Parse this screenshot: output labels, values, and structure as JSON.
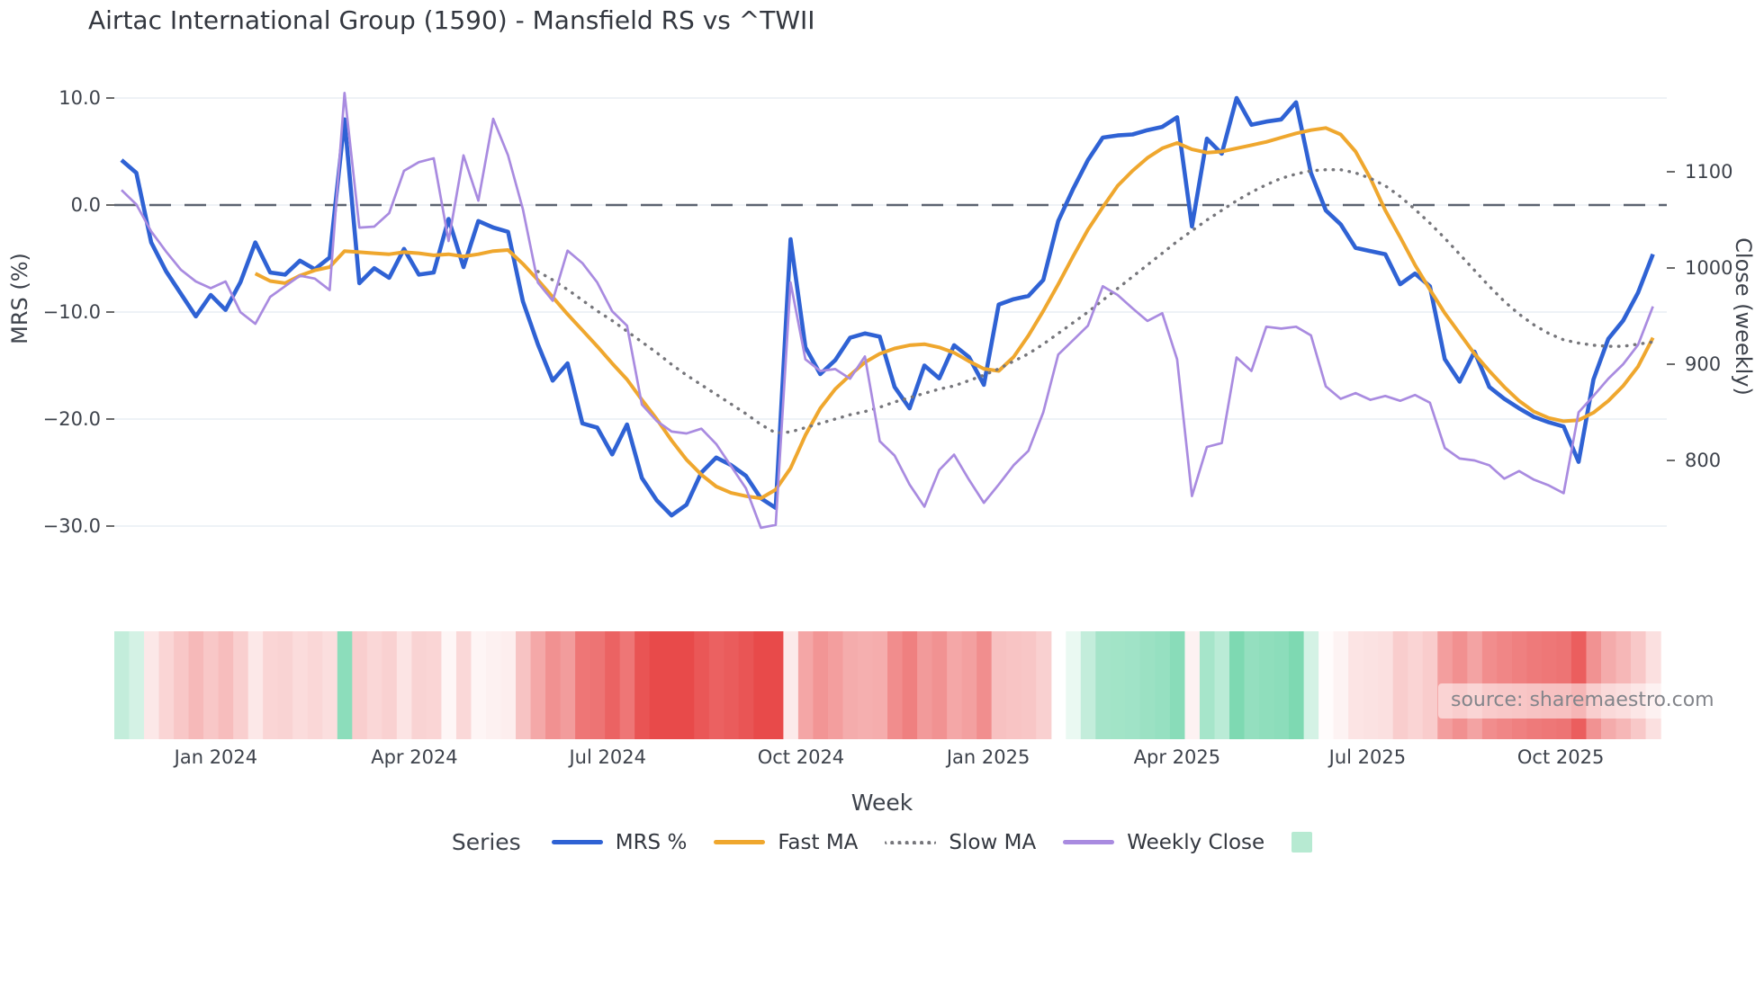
{
  "title": "Airtac International Group (1590) - Mansfield RS vs ^TWII",
  "source": "source: sharemaestro.com",
  "axes": {
    "left": {
      "label": "MRS (%)",
      "tick_labels": [
        "10.0",
        "0.0",
        "−10.0",
        "−20.0",
        "−30.0"
      ],
      "tick_values": [
        10,
        0,
        -10,
        -20,
        -30
      ]
    },
    "right": {
      "label": "Close (weekly)",
      "tick_labels": [
        "1100",
        "1000",
        "900",
        "800"
      ],
      "tick_values": [
        1100,
        1000,
        900,
        800
      ]
    },
    "x": {
      "label": "Week",
      "ticks": [
        {
          "label": "Jan 2024",
          "week": 6.35
        },
        {
          "label": "Apr 2024",
          "week": 19.7
        },
        {
          "label": "Jul 2024",
          "week": 32.7
        },
        {
          "label": "Oct 2024",
          "week": 45.7
        },
        {
          "label": "Jan 2025",
          "week": 58.3
        },
        {
          "label": "Apr 2025",
          "week": 71.0
        },
        {
          "label": "Jul 2025",
          "week": 83.8
        },
        {
          "label": "Oct 2025",
          "week": 96.8
        }
      ]
    }
  },
  "legend": {
    "title": "Series",
    "items": [
      {
        "label": "MRS %",
        "swatch": "line",
        "color_key": "mrs_blue"
      },
      {
        "label": "Fast MA",
        "swatch": "line",
        "color_key": "fast_orange"
      },
      {
        "label": "Slow MA",
        "swatch": "dotted",
        "color_key": "slow_gray"
      },
      {
        "label": "Weekly Close",
        "swatch": "line",
        "color_key": "close_purple"
      },
      {
        "label": "",
        "swatch": "square",
        "color_key": "legend_square"
      }
    ]
  },
  "colors": {
    "mrs_blue": "#2f62d4",
    "fast_orange": "#efa72e",
    "slow_gray": "#76767b",
    "close_purple": "#a98be0",
    "zero_line": "#5c6370",
    "grid": "#e9edf4",
    "heat_green": "#7ed9b2",
    "heat_red": "#e84a4a",
    "legend_square": "#b7ead2",
    "title_text": "#33373f",
    "tick_text": "#3d424b",
    "source_text": "#83858b"
  },
  "chart_data": {
    "type": "line",
    "x_unit": "weekly, mid-Nov 2023 to mid-Nov 2025 (104 weeks)",
    "ylim_left": [
      -30,
      10
    ],
    "ylim_right": [
      800,
      1100
    ],
    "grid": true,
    "zero_reference_line": true,
    "legend_position": "bottom",
    "series": [
      {
        "name": "MRS %",
        "axis": "left",
        "style": "solid",
        "color_key": "mrs_blue",
        "start_week": 0,
        "values": [
          4.2,
          3.0,
          -3.5,
          -6.2,
          -8.3,
          -10.4,
          -8.4,
          -9.8,
          -7.2,
          -3.5,
          -6.3,
          -6.5,
          -5.2,
          -6.0,
          -4.9,
          8.0,
          -7.3,
          -5.9,
          -6.8,
          -4.1,
          -6.5,
          -6.3,
          -1.3,
          -5.8,
          -1.5,
          -2.1,
          -2.5,
          -9.0,
          -13.0,
          -16.4,
          -14.8,
          -20.4,
          -20.8,
          -23.3,
          -20.5,
          -25.5,
          -27.6,
          -29.0,
          -28.0,
          -25.0,
          -23.6,
          -24.3,
          -25.3,
          -27.4,
          -28.3,
          -3.2,
          -13.3,
          -15.8,
          -14.5,
          -12.4,
          -12.0,
          -12.3,
          -17.0,
          -19.0,
          -15.0,
          -16.2,
          -13.1,
          -14.2,
          -16.8,
          -9.3,
          -8.8,
          -8.5,
          -7.0,
          -1.5,
          1.5,
          4.2,
          6.3,
          6.5,
          6.6,
          7.0,
          7.3,
          8.2,
          -2.0,
          6.2,
          4.8,
          10.0,
          7.5,
          7.8,
          8.0,
          9.6,
          3.0,
          -0.5,
          -1.8,
          -4.0,
          -4.3,
          -4.6,
          -7.4,
          -6.4,
          -7.6,
          -14.4,
          -16.5,
          -13.7,
          -17.0,
          -18.1,
          -19.0,
          -19.8,
          -20.3,
          -20.7,
          -24.0,
          -16.3,
          -12.5,
          -10.8,
          -8.2,
          -4.6
        ]
      },
      {
        "name": "Fast MA",
        "axis": "left",
        "style": "solid",
        "color_key": "fast_orange",
        "start_week": 9,
        "values": [
          -6.4,
          -7.1,
          -7.3,
          -6.6,
          -6.1,
          -5.8,
          -4.3,
          -4.4,
          -4.5,
          -4.6,
          -4.4,
          -4.5,
          -4.7,
          -4.6,
          -4.8,
          -4.6,
          -4.3,
          -4.2,
          -5.5,
          -7.0,
          -8.6,
          -10.2,
          -11.7,
          -13.2,
          -14.8,
          -16.3,
          -18.2,
          -20.0,
          -22.0,
          -23.8,
          -25.2,
          -26.3,
          -26.9,
          -27.2,
          -27.4,
          -26.6,
          -24.6,
          -21.5,
          -19.0,
          -17.2,
          -15.9,
          -14.7,
          -13.9,
          -13.4,
          -13.1,
          -13.0,
          -13.3,
          -13.8,
          -14.6,
          -15.3,
          -15.5,
          -14.2,
          -12.2,
          -9.9,
          -7.4,
          -4.8,
          -2.3,
          -0.2,
          1.8,
          3.2,
          4.4,
          5.3,
          5.8,
          5.2,
          4.9,
          5.0,
          5.3,
          5.6,
          5.9,
          6.3,
          6.7,
          7.0,
          7.2,
          6.6,
          5.0,
          2.5,
          -0.5,
          -3.0,
          -5.6,
          -7.9,
          -10.1,
          -12.0,
          -13.9,
          -15.5,
          -17.0,
          -18.3,
          -19.3,
          -19.9,
          -20.2,
          -20.1,
          -19.4,
          -18.3,
          -16.9,
          -15.1,
          -12.4
        ]
      },
      {
        "name": "Slow MA",
        "axis": "left",
        "style": "dotted",
        "color_key": "slow_gray",
        "start_week": 28,
        "values": [
          -6.2,
          -7.0,
          -7.9,
          -8.9,
          -9.9,
          -10.8,
          -11.8,
          -12.8,
          -13.8,
          -14.9,
          -15.9,
          -16.8,
          -17.7,
          -18.6,
          -19.5,
          -20.5,
          -21.3,
          -21.2,
          -20.8,
          -20.4,
          -20.0,
          -19.6,
          -19.3,
          -18.9,
          -18.4,
          -18.0,
          -17.6,
          -17.2,
          -16.9,
          -16.4,
          -15.9,
          -15.3,
          -14.6,
          -13.9,
          -13.0,
          -12.0,
          -11.0,
          -10.0,
          -8.9,
          -7.8,
          -6.7,
          -5.6,
          -4.5,
          -3.4,
          -2.4,
          -1.4,
          -0.5,
          0.4,
          1.2,
          1.9,
          2.5,
          2.9,
          3.2,
          3.3,
          3.3,
          3.0,
          2.5,
          1.8,
          0.8,
          -0.4,
          -1.7,
          -3.1,
          -4.6,
          -6.1,
          -7.6,
          -9.0,
          -10.2,
          -11.2,
          -12.0,
          -12.6,
          -12.9,
          -13.1,
          -13.2,
          -13.2,
          -13.0,
          -12.8
        ]
      },
      {
        "name": "Weekly Close",
        "axis": "right",
        "style": "solid",
        "color_key": "close_purple",
        "start_week": 0,
        "values": [
          1081,
          1066,
          1038,
          1017,
          998,
          986,
          979,
          986,
          954,
          942,
          970,
          981,
          992,
          989,
          977,
          1182,
          1042,
          1043,
          1057,
          1101,
          1110,
          1114,
          1028,
          1117,
          1070,
          1155,
          1117,
          1061,
          985,
          966,
          1018,
          1005,
          985,
          955,
          940,
          858,
          841,
          830,
          828,
          833,
          817,
          794,
          771,
          730,
          733,
          985,
          905,
          893,
          895,
          885,
          908,
          820,
          805,
          775,
          752,
          790,
          806,
          780,
          756,
          775,
          795,
          810,
          850,
          910,
          925,
          940,
          981,
          972,
          958,
          945,
          953,
          905,
          763,
          814,
          818,
          907,
          893,
          939,
          937,
          939,
          930,
          877,
          864,
          870,
          863,
          867,
          862,
          868,
          860,
          813,
          802,
          800,
          795,
          781,
          789,
          780,
          774,
          766,
          850,
          867,
          885,
          900,
          920,
          960
        ]
      }
    ],
    "heatmap": {
      "description": "weekly strip below chart, color-coded by MRS % (green positive, red negative)",
      "based_on_series": "MRS %",
      "gap_week": 63
    }
  }
}
